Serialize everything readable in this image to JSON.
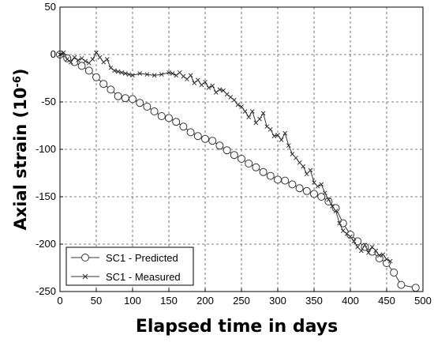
{
  "chart_data": {
    "type": "line",
    "title": "",
    "xlabel": "Elapsed time in days",
    "ylabel_main": "Axial strain (10",
    "ylabel_exp": "-6",
    "ylabel_close": ")",
    "xlim": [
      0,
      500
    ],
    "ylim": [
      -250,
      50
    ],
    "xticks": [
      0,
      50,
      100,
      150,
      200,
      250,
      300,
      350,
      400,
      450,
      500
    ],
    "yticks": [
      50,
      0,
      -50,
      -100,
      -150,
      -200,
      -250
    ],
    "grid": true,
    "legend_position": "bottom-left",
    "colors": {
      "series": "#333333",
      "grid": "#555555",
      "axes": "#000000"
    },
    "series": [
      {
        "name": "SC1 - Predicted",
        "marker": "circle",
        "x": [
          0,
          10,
          20,
          30,
          40,
          50,
          60,
          70,
          80,
          90,
          100,
          110,
          120,
          130,
          140,
          150,
          160,
          170,
          180,
          190,
          200,
          210,
          220,
          230,
          240,
          250,
          260,
          270,
          280,
          290,
          300,
          310,
          320,
          330,
          340,
          350,
          360,
          370,
          380,
          390,
          400,
          410,
          420,
          430,
          440,
          450,
          460,
          470,
          490
        ],
        "y": [
          0,
          -4,
          -8,
          -12,
          -17,
          -24,
          -31,
          -37,
          -44,
          -46,
          -47,
          -51,
          -55,
          -60,
          -65,
          -67,
          -71,
          -76,
          -82,
          -86,
          -89,
          -91,
          -96,
          -101,
          -106,
          -110,
          -115,
          -119,
          -124,
          -128,
          -132,
          -133,
          -137,
          -141,
          -144,
          -147,
          -150,
          -155,
          -162,
          -178,
          -190,
          -197,
          -203,
          -208,
          -215,
          -220,
          -230,
          -243,
          -246
        ]
      },
      {
        "name": "SC1 - Measured",
        "marker": "x",
        "x": [
          0,
          5,
          10,
          15,
          20,
          25,
          30,
          35,
          40,
          45,
          50,
          55,
          60,
          65,
          70,
          75,
          80,
          85,
          90,
          95,
          100,
          110,
          120,
          130,
          140,
          150,
          155,
          160,
          165,
          170,
          175,
          180,
          185,
          190,
          195,
          200,
          205,
          210,
          215,
          220,
          225,
          230,
          235,
          240,
          245,
          250,
          255,
          260,
          265,
          270,
          275,
          280,
          285,
          290,
          295,
          300,
          305,
          310,
          315,
          320,
          325,
          330,
          335,
          340,
          345,
          350,
          355,
          360,
          365,
          370,
          375,
          380,
          385,
          390,
          395,
          400,
          405,
          410,
          415,
          420,
          425,
          430,
          435,
          440,
          445,
          450,
          455
        ],
        "y": [
          0,
          2,
          -5,
          -8,
          -3,
          -6,
          -4,
          -7,
          -9,
          -5,
          2,
          -3,
          -8,
          -5,
          -14,
          -17,
          -18,
          -19,
          -20,
          -21,
          -22,
          -20,
          -21,
          -22,
          -21,
          -19,
          -20,
          -22,
          -19,
          -23,
          -26,
          -22,
          -30,
          -27,
          -32,
          -29,
          -35,
          -33,
          -40,
          -37,
          -38,
          -42,
          -45,
          -48,
          -53,
          -55,
          -60,
          -66,
          -60,
          -72,
          -68,
          -62,
          -76,
          -79,
          -86,
          -85,
          -90,
          -83,
          -96,
          -105,
          -109,
          -114,
          -118,
          -126,
          -122,
          -135,
          -139,
          -137,
          -146,
          -153,
          -160,
          -165,
          -178,
          -186,
          -189,
          -192,
          -197,
          -203,
          -207,
          -201,
          -209,
          -203,
          -207,
          -212,
          -211,
          -216,
          -218
        ]
      }
    ]
  }
}
